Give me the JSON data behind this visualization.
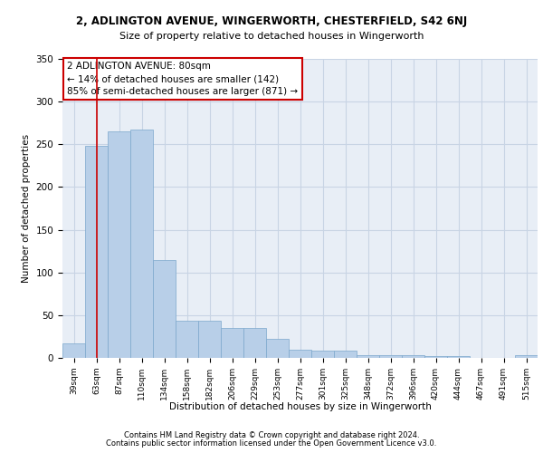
{
  "title_line1": "2, ADLINGTON AVENUE, WINGERWORTH, CHESTERFIELD, S42 6NJ",
  "title_line2": "Size of property relative to detached houses in Wingerworth",
  "xlabel": "Distribution of detached houses by size in Wingerworth",
  "ylabel": "Number of detached properties",
  "footer_line1": "Contains HM Land Registry data © Crown copyright and database right 2024.",
  "footer_line2": "Contains public sector information licensed under the Open Government Licence v3.0.",
  "bar_labels": [
    "39sqm",
    "63sqm",
    "87sqm",
    "110sqm",
    "134sqm",
    "158sqm",
    "182sqm",
    "206sqm",
    "229sqm",
    "253sqm",
    "277sqm",
    "301sqm",
    "325sqm",
    "348sqm",
    "372sqm",
    "396sqm",
    "420sqm",
    "444sqm",
    "467sqm",
    "491sqm",
    "515sqm"
  ],
  "bar_values": [
    17,
    248,
    265,
    267,
    115,
    44,
    44,
    35,
    35,
    22,
    10,
    9,
    9,
    3,
    3,
    3,
    2,
    2,
    0,
    0,
    3
  ],
  "bar_color": "#b8cfe8",
  "bar_edgecolor": "#7ba7cc",
  "grid_color": "#c8d4e4",
  "background_color": "#e8eef6",
  "ylim": [
    0,
    350
  ],
  "yticks": [
    0,
    50,
    100,
    150,
    200,
    250,
    300,
    350
  ],
  "annotation_text_line1": "2 ADLINGTON AVENUE: 80sqm",
  "annotation_text_line2": "← 14% of detached houses are smaller (142)",
  "annotation_text_line3": "85% of semi-detached houses are larger (871) →",
  "annotation_box_color": "#ffffff",
  "annotation_box_edgecolor": "#cc0000",
  "red_line_color": "#cc0000",
  "red_line_x": 1.5
}
